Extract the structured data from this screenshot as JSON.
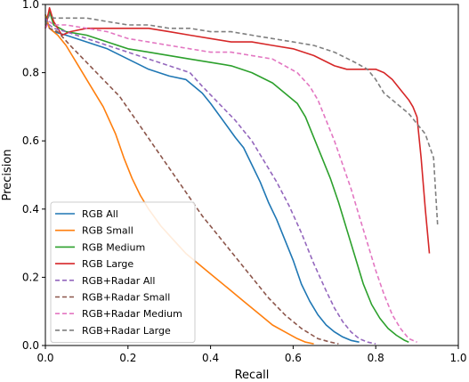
{
  "chart_data": {
    "type": "line",
    "title": "",
    "xlabel": "Recall",
    "ylabel": "Precision",
    "xlim": [
      0.0,
      1.0
    ],
    "ylim": [
      0.0,
      1.0
    ],
    "xticks": [
      "0.0",
      "0.2",
      "0.4",
      "0.6",
      "0.8",
      "1.0"
    ],
    "yticks": [
      "0.0",
      "0.2",
      "0.4",
      "0.6",
      "0.8",
      "1.0"
    ],
    "grid": false,
    "legend_position": "lower-left",
    "series": [
      {
        "name": "RGB All",
        "color": "#1f77b4",
        "dash": "solid",
        "x": [
          0.0,
          0.01,
          0.02,
          0.05,
          0.1,
          0.15,
          0.2,
          0.25,
          0.3,
          0.34,
          0.36,
          0.38,
          0.4,
          0.43,
          0.46,
          0.48,
          0.5,
          0.52,
          0.54,
          0.56,
          0.58,
          0.6,
          0.62,
          0.64,
          0.66,
          0.68,
          0.7,
          0.72,
          0.74,
          0.76
        ],
        "y": [
          0.97,
          0.93,
          0.92,
          0.91,
          0.89,
          0.87,
          0.84,
          0.81,
          0.79,
          0.78,
          0.76,
          0.74,
          0.71,
          0.66,
          0.61,
          0.58,
          0.53,
          0.48,
          0.42,
          0.37,
          0.31,
          0.25,
          0.18,
          0.13,
          0.09,
          0.06,
          0.04,
          0.025,
          0.015,
          0.01
        ]
      },
      {
        "name": "RGB Small",
        "color": "#ff7f0e",
        "dash": "solid",
        "x": [
          0.0,
          0.01,
          0.03,
          0.05,
          0.08,
          0.11,
          0.14,
          0.17,
          0.19,
          0.21,
          0.23,
          0.25,
          0.28,
          0.31,
          0.34,
          0.37,
          0.4,
          0.44,
          0.48,
          0.52,
          0.55,
          0.58,
          0.61,
          0.63,
          0.65
        ],
        "y": [
          0.97,
          0.93,
          0.91,
          0.88,
          0.82,
          0.76,
          0.7,
          0.62,
          0.55,
          0.49,
          0.44,
          0.4,
          0.35,
          0.31,
          0.27,
          0.24,
          0.21,
          0.17,
          0.13,
          0.09,
          0.06,
          0.04,
          0.02,
          0.01,
          0.005
        ]
      },
      {
        "name": "RGB Medium",
        "color": "#2ca02c",
        "dash": "solid",
        "x": [
          0.0,
          0.01,
          0.02,
          0.05,
          0.1,
          0.15,
          0.2,
          0.25,
          0.3,
          0.35,
          0.4,
          0.45,
          0.5,
          0.55,
          0.58,
          0.61,
          0.63,
          0.65,
          0.67,
          0.69,
          0.71,
          0.73,
          0.75,
          0.77,
          0.79,
          0.81,
          0.83,
          0.85,
          0.87,
          0.88
        ],
        "y": [
          0.95,
          0.98,
          0.94,
          0.92,
          0.91,
          0.89,
          0.87,
          0.86,
          0.85,
          0.84,
          0.83,
          0.82,
          0.8,
          0.77,
          0.74,
          0.71,
          0.67,
          0.61,
          0.55,
          0.49,
          0.42,
          0.34,
          0.26,
          0.18,
          0.12,
          0.08,
          0.05,
          0.03,
          0.015,
          0.01
        ]
      },
      {
        "name": "RGB Large",
        "color": "#d62728",
        "dash": "solid",
        "x": [
          0.0,
          0.005,
          0.01,
          0.02,
          0.04,
          0.06,
          0.1,
          0.15,
          0.2,
          0.25,
          0.3,
          0.35,
          0.4,
          0.45,
          0.5,
          0.55,
          0.6,
          0.65,
          0.7,
          0.73,
          0.75,
          0.78,
          0.8,
          0.82,
          0.84,
          0.86,
          0.88,
          0.89,
          0.9,
          0.91,
          0.92,
          0.93
        ],
        "y": [
          0.93,
          0.96,
          0.99,
          0.95,
          0.91,
          0.92,
          0.93,
          0.93,
          0.93,
          0.93,
          0.92,
          0.91,
          0.9,
          0.89,
          0.89,
          0.88,
          0.87,
          0.85,
          0.82,
          0.81,
          0.81,
          0.81,
          0.81,
          0.8,
          0.78,
          0.75,
          0.72,
          0.7,
          0.67,
          0.55,
          0.4,
          0.27
        ]
      },
      {
        "name": "RGB+Radar All",
        "color": "#9467bd",
        "dash": "dashed",
        "x": [
          0.0,
          0.01,
          0.02,
          0.05,
          0.1,
          0.15,
          0.2,
          0.25,
          0.3,
          0.35,
          0.38,
          0.42,
          0.46,
          0.5,
          0.53,
          0.56,
          0.59,
          0.62,
          0.65,
          0.68,
          0.7,
          0.72,
          0.74,
          0.76,
          0.78,
          0.8
        ],
        "y": [
          0.96,
          0.94,
          0.93,
          0.92,
          0.9,
          0.88,
          0.86,
          0.84,
          0.82,
          0.8,
          0.76,
          0.71,
          0.66,
          0.6,
          0.54,
          0.48,
          0.41,
          0.33,
          0.24,
          0.16,
          0.11,
          0.07,
          0.04,
          0.02,
          0.01,
          0.005
        ]
      },
      {
        "name": "RGB+Radar Small",
        "color": "#8c564b",
        "dash": "dashed",
        "x": [
          0.0,
          0.01,
          0.03,
          0.06,
          0.1,
          0.14,
          0.18,
          0.22,
          0.26,
          0.3,
          0.34,
          0.38,
          0.42,
          0.46,
          0.5,
          0.54,
          0.58,
          0.62,
          0.66,
          0.69,
          0.71
        ],
        "y": [
          0.95,
          0.93,
          0.92,
          0.88,
          0.83,
          0.78,
          0.73,
          0.66,
          0.59,
          0.52,
          0.45,
          0.38,
          0.32,
          0.26,
          0.2,
          0.14,
          0.09,
          0.05,
          0.02,
          0.01,
          0.005
        ]
      },
      {
        "name": "RGB+Radar Medium",
        "color": "#e377c2",
        "dash": "dashed",
        "x": [
          0.0,
          0.01,
          0.02,
          0.05,
          0.1,
          0.15,
          0.2,
          0.25,
          0.3,
          0.35,
          0.4,
          0.45,
          0.5,
          0.55,
          0.58,
          0.61,
          0.64,
          0.66,
          0.68,
          0.7,
          0.72,
          0.74,
          0.76,
          0.78,
          0.8,
          0.82,
          0.84,
          0.86,
          0.88,
          0.9
        ],
        "y": [
          0.93,
          0.95,
          0.94,
          0.94,
          0.93,
          0.92,
          0.9,
          0.89,
          0.88,
          0.87,
          0.86,
          0.86,
          0.85,
          0.84,
          0.82,
          0.8,
          0.76,
          0.72,
          0.66,
          0.6,
          0.53,
          0.46,
          0.38,
          0.3,
          0.22,
          0.15,
          0.09,
          0.05,
          0.02,
          0.01
        ]
      },
      {
        "name": "RGB+Radar Large",
        "color": "#7f7f7f",
        "dash": "dashed",
        "x": [
          0.0,
          0.01,
          0.02,
          0.05,
          0.1,
          0.15,
          0.2,
          0.25,
          0.3,
          0.35,
          0.4,
          0.45,
          0.5,
          0.55,
          0.6,
          0.65,
          0.7,
          0.75,
          0.78,
          0.8,
          0.82,
          0.84,
          0.86,
          0.88,
          0.9,
          0.92,
          0.94,
          0.945,
          0.95
        ],
        "y": [
          0.94,
          0.97,
          0.96,
          0.96,
          0.96,
          0.95,
          0.94,
          0.94,
          0.93,
          0.93,
          0.92,
          0.92,
          0.91,
          0.9,
          0.89,
          0.88,
          0.86,
          0.83,
          0.81,
          0.78,
          0.74,
          0.72,
          0.7,
          0.68,
          0.65,
          0.62,
          0.55,
          0.45,
          0.35
        ]
      }
    ]
  }
}
